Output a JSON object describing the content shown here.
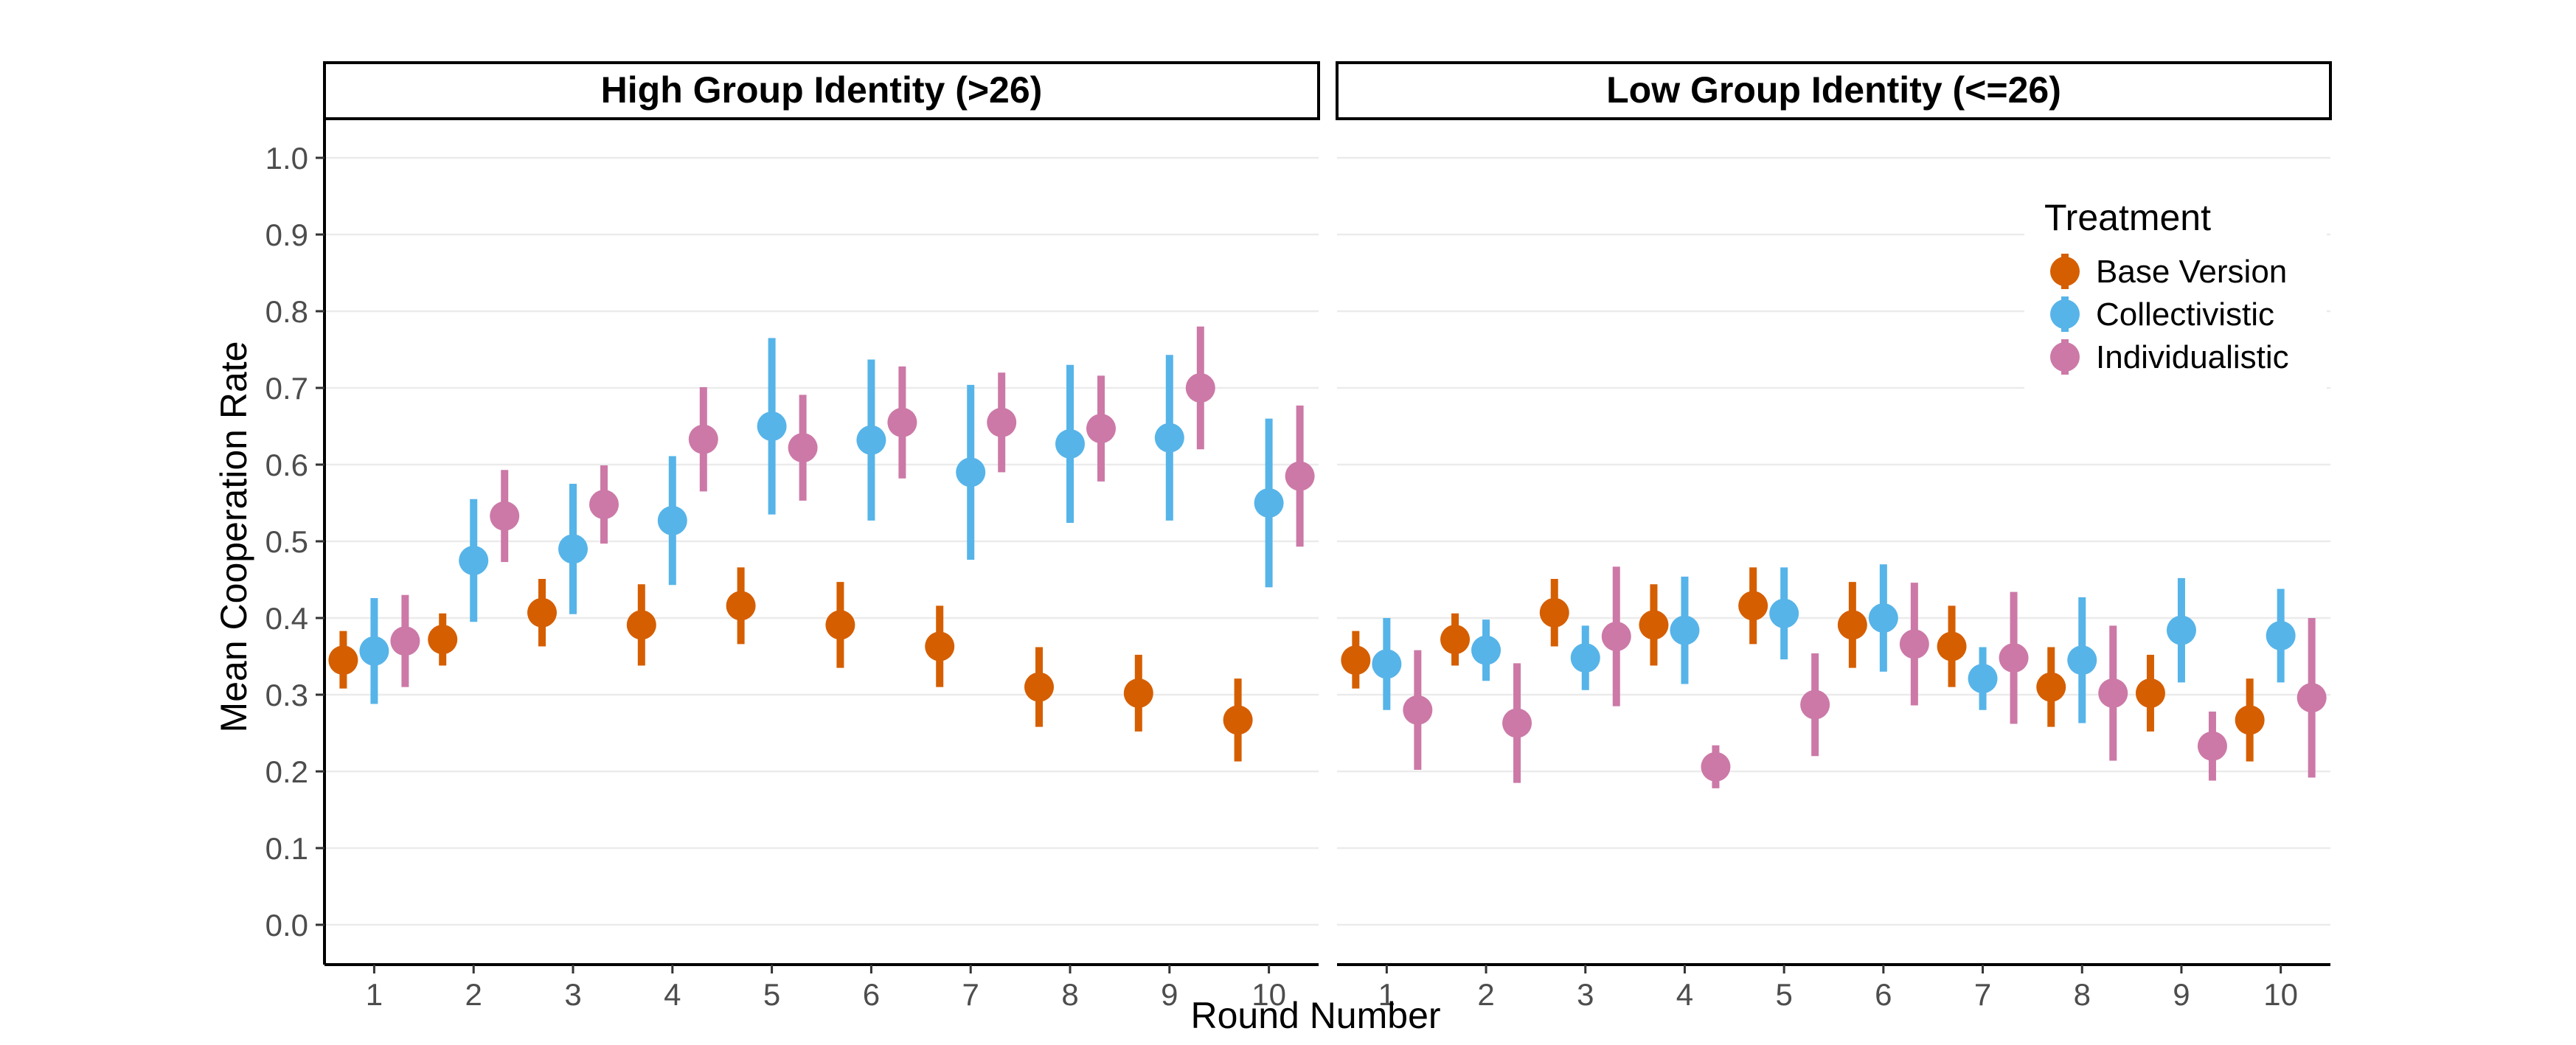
{
  "chart_data": {
    "type": "scatter",
    "xlabel": "Round Number",
    "ylabel": "Mean Cooperation Rate",
    "x_ticks": [
      "1",
      "2",
      "3",
      "4",
      "5",
      "6",
      "7",
      "8",
      "9",
      "10"
    ],
    "y_ticks": [
      "0.0",
      "0.1",
      "0.2",
      "0.3",
      "0.4",
      "0.5",
      "0.6",
      "0.7",
      "0.8",
      "0.9",
      "1.0"
    ],
    "ylim": [
      0,
      1
    ],
    "grid": "horizontal",
    "legend": {
      "title": "Treatment",
      "placement": "top-right",
      "entries": [
        {
          "name": "Base Version",
          "color": "#D55E00"
        },
        {
          "name": "Collectivistic",
          "color": "#56B4E9"
        },
        {
          "name": "Individualistic",
          "color": "#CC79A7"
        }
      ]
    },
    "panels": [
      {
        "title": "High Group Identity (>26)",
        "series": [
          {
            "name": "Base Version",
            "color": "#D55E00",
            "values": [
              0.345,
              0.372,
              0.407,
              0.391,
              0.416,
              0.391,
              0.363,
              0.31,
              0.302,
              0.267
            ],
            "lower": [
              0.308,
              0.338,
              0.363,
              0.338,
              0.366,
              0.335,
              0.31,
              0.258,
              0.252,
              0.213
            ],
            "upper": [
              0.383,
              0.406,
              0.451,
              0.444,
              0.466,
              0.447,
              0.416,
              0.362,
              0.352,
              0.321
            ]
          },
          {
            "name": "Collectivistic",
            "color": "#56B4E9",
            "values": [
              0.357,
              0.475,
              0.49,
              0.527,
              0.65,
              0.632,
              0.59,
              0.627,
              0.635,
              0.55
            ],
            "lower": [
              0.288,
              0.395,
              0.405,
              0.443,
              0.535,
              0.527,
              0.476,
              0.524,
              0.527,
              0.44
            ],
            "upper": [
              0.426,
              0.555,
              0.575,
              0.611,
              0.765,
              0.737,
              0.704,
              0.73,
              0.743,
              0.66
            ]
          },
          {
            "name": "Individualistic",
            "color": "#CC79A7",
            "values": [
              0.37,
              0.533,
              0.548,
              0.633,
              0.622,
              0.655,
              0.655,
              0.647,
              0.7,
              0.585
            ],
            "lower": [
              0.31,
              0.473,
              0.497,
              0.565,
              0.553,
              0.582,
              0.59,
              0.578,
              0.62,
              0.493
            ],
            "upper": [
              0.43,
              0.593,
              0.599,
              0.701,
              0.691,
              0.728,
              0.72,
              0.716,
              0.78,
              0.677
            ]
          }
        ]
      },
      {
        "title": "Low Group Identity (<=26)",
        "series": [
          {
            "name": "Base Version",
            "color": "#D55E00",
            "values": [
              0.345,
              0.372,
              0.407,
              0.391,
              0.416,
              0.391,
              0.363,
              0.31,
              0.302,
              0.267
            ],
            "lower": [
              0.308,
              0.338,
              0.363,
              0.338,
              0.366,
              0.335,
              0.31,
              0.258,
              0.252,
              0.213
            ],
            "upper": [
              0.383,
              0.406,
              0.451,
              0.444,
              0.466,
              0.447,
              0.416,
              0.362,
              0.352,
              0.321
            ]
          },
          {
            "name": "Collectivistic",
            "color": "#56B4E9",
            "values": [
              0.34,
              0.358,
              0.348,
              0.384,
              0.406,
              0.4,
              0.321,
              0.345,
              0.384,
              0.377
            ],
            "lower": [
              0.28,
              0.318,
              0.306,
              0.314,
              0.346,
              0.33,
              0.28,
              0.263,
              0.316,
              0.316
            ],
            "upper": [
              0.4,
              0.398,
              0.39,
              0.454,
              0.466,
              0.47,
              0.362,
              0.427,
              0.452,
              0.438
            ]
          },
          {
            "name": "Individualistic",
            "color": "#CC79A7",
            "values": [
              0.28,
              0.263,
              0.376,
              0.206,
              0.287,
              0.366,
              0.348,
              0.302,
              0.233,
              0.296
            ],
            "lower": [
              0.202,
              0.185,
              0.285,
              0.178,
              0.22,
              0.286,
              0.262,
              0.214,
              0.188,
              0.192
            ],
            "upper": [
              0.358,
              0.341,
              0.467,
              0.234,
              0.354,
              0.446,
              0.434,
              0.39,
              0.278,
              0.4
            ]
          }
        ]
      }
    ]
  }
}
